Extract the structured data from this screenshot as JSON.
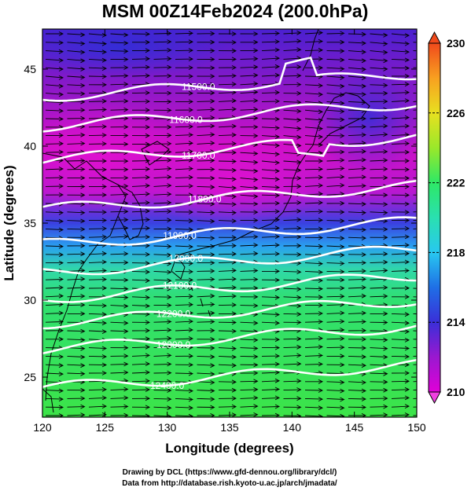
{
  "title": "MSM 00Z14Feb2024 (200.0hPa)",
  "xlabel": "Longitude (degrees)",
  "ylabel": "Latitude  (degrees)",
  "x_ticks": [
    120,
    125,
    130,
    135,
    140,
    145,
    150
  ],
  "y_ticks": [
    25,
    30,
    35,
    40,
    45
  ],
  "xlim": [
    120,
    150
  ],
  "ylim": [
    22.4,
    47.6
  ],
  "colorbar": {
    "ticks": [
      210,
      214,
      218,
      222,
      226,
      230
    ],
    "min": 210,
    "max": 230,
    "unit": "",
    "stops": [
      "#e000d8",
      "#9a18d0",
      "#3a2fd8",
      "#1f6fe6",
      "#28c8f0",
      "#2ae0b0",
      "#2ee866",
      "#9ae82a",
      "#e8e020",
      "#f8a020",
      "#f04a1c"
    ]
  },
  "height_contours": [
    {
      "label": "11500.0",
      "lat": 43.2
    },
    {
      "label": "11600.0",
      "lat": 41.3
    },
    {
      "label": "11700.0",
      "lat": 39.1
    },
    {
      "label": "11800.0",
      "lat": 35.9
    },
    {
      "label": "11900.0",
      "lat": 33.6
    },
    {
      "label": "12000.0",
      "lat": 31.8
    },
    {
      "label": "12100.0",
      "lat": 30.1
    },
    {
      "label": "12200.0",
      "lat": 28.5
    },
    {
      "label": "12300.0",
      "lat": 26.8
    },
    {
      "label": "12400.0",
      "lat": 24.3
    }
  ],
  "credits": {
    "line1": "Drawing by DCL (https://www.gfd-dennou.org/library/dcl/)",
    "line2": "Data from http://database.rish.kyoto-u.ac.jp/arch/jmadata/"
  }
}
